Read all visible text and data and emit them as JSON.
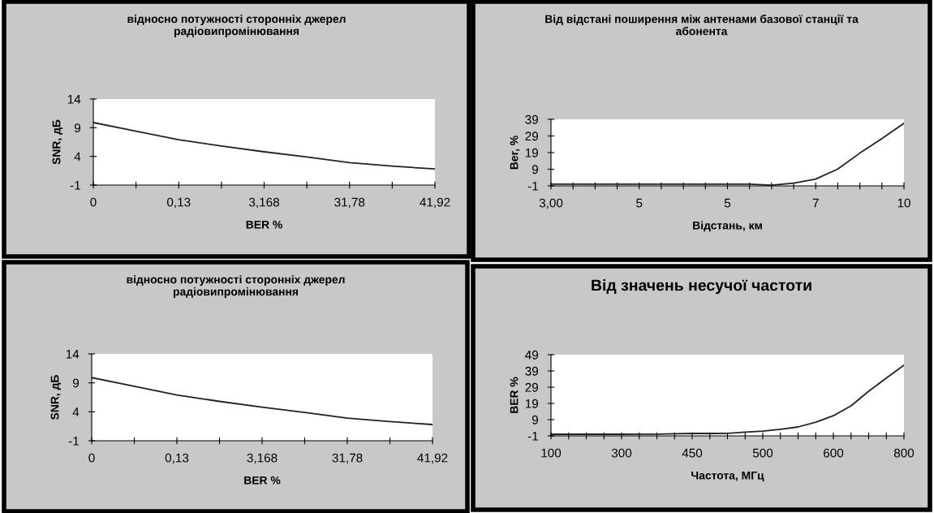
{
  "chart_data": [
    {
      "type": "line",
      "title": "відносно потужності сторонніх джерел радіовипромінювання",
      "xlabel": "BER %",
      "ylabel": "SNR, дБ",
      "categories": [
        "0",
        null,
        "0,13",
        null,
        "3,168",
        null,
        "31,78",
        null,
        "41,92"
      ],
      "series": [
        {
          "color": "#222222",
          "values": [
            9.9,
            8.4,
            6.9,
            5.8,
            4.8,
            3.9,
            2.9,
            2.3,
            1.8
          ]
        }
      ],
      "ylim": [
        -1,
        14
      ],
      "yticks": [
        -1,
        4,
        9,
        14
      ],
      "grid": false,
      "legend": false,
      "marker": "none"
    },
    {
      "type": "line",
      "title": "Від відстані поширення між антенами базової станції та абонента",
      "xlabel": "Відстань, км",
      "ylabel": "Ber, %",
      "categories": [
        "3,00",
        null,
        null,
        null,
        "5",
        null,
        null,
        null,
        "5",
        null,
        null,
        null,
        "7",
        null,
        null,
        null,
        "10"
      ],
      "series": [
        {
          "color": "#222222",
          "values": [
            0,
            0,
            0,
            0,
            0,
            0,
            0,
            0,
            0,
            0,
            -0.6,
            0.6,
            3.1,
            9.1,
            18.7,
            27.4,
            36.6
          ]
        }
      ],
      "ylim": [
        -1,
        39
      ],
      "yticks": [
        -1,
        9,
        19,
        29,
        39
      ],
      "grid": false,
      "legend": false,
      "marker": "none"
    },
    {
      "type": "line",
      "title": "відносно потужності сторонніх джерел радіовипромінювання",
      "xlabel": "BER %",
      "ylabel": "SNR, дБ",
      "categories": [
        "0",
        null,
        "0,13",
        null,
        "3,168",
        null,
        "31,78",
        null,
        "41,92"
      ],
      "series": [
        {
          "color": "#222222",
          "values": [
            9.9,
            8.4,
            6.9,
            5.8,
            4.8,
            3.9,
            2.9,
            2.3,
            1.8
          ]
        }
      ],
      "ylim": [
        -1,
        14
      ],
      "yticks": [
        -1,
        4,
        9,
        14
      ],
      "grid": false,
      "legend": false,
      "marker": "none"
    },
    {
      "type": "line",
      "title": "Від значень несучої частоти",
      "xlabel": "Частота, МГц",
      "ylabel": "BER %",
      "categories": [
        "100",
        null,
        null,
        null,
        "300",
        null,
        null,
        null,
        "450",
        null,
        null,
        null,
        "500",
        null,
        null,
        null,
        "600",
        null,
        null,
        null,
        "800"
      ],
      "series": [
        {
          "color": "#222222",
          "values": [
            0,
            0,
            0,
            0,
            0,
            0.1,
            0.1,
            0.3,
            0.5,
            0.5,
            0.6,
            1.3,
            1.9,
            3.1,
            4.5,
            7.4,
            11.4,
            17.5,
            26.5,
            34.6,
            42.6
          ]
        }
      ],
      "ylim": [
        -1,
        49
      ],
      "yticks": [
        -1,
        9,
        19,
        29,
        39,
        49
      ],
      "grid": false,
      "legend": false,
      "marker": "none"
    }
  ]
}
